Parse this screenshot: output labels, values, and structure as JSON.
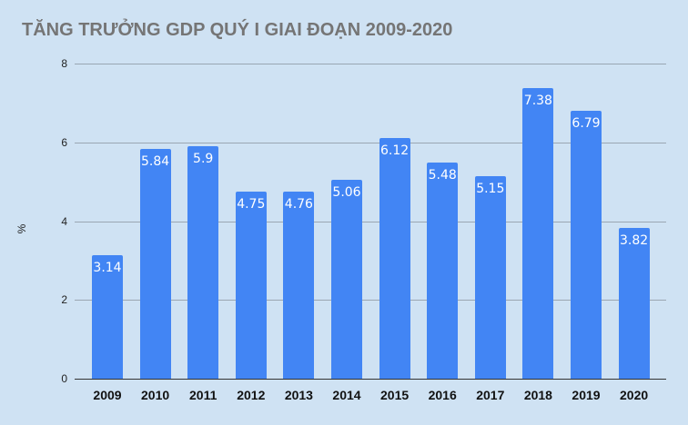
{
  "chart_data": {
    "type": "bar",
    "title": "TĂNG TRƯỞNG GDP QUÝ I GIAI ĐOẠN 2009-2020",
    "xlabel": "",
    "ylabel": "%",
    "ylim": [
      0,
      8
    ],
    "yticks": [
      "0",
      "2",
      "4",
      "6",
      "8"
    ],
    "grid": true,
    "legend": "none",
    "bar_color": "#4285f4",
    "background": "#cfe2f3",
    "categories": [
      "2009",
      "2010",
      "2011",
      "2012",
      "2013",
      "2014",
      "2015",
      "2016",
      "2017",
      "2018",
      "2019",
      "2020"
    ],
    "values": [
      3.14,
      5.84,
      5.9,
      4.75,
      4.76,
      5.06,
      6.12,
      5.48,
      5.15,
      7.38,
      6.79,
      3.82
    ],
    "data_labels": [
      "3.14",
      "5.84",
      "5.9",
      "4.75",
      "4.76",
      "5.06",
      "6.12",
      "5.48",
      "5.15",
      "7.38",
      "6.79",
      "3.82"
    ]
  }
}
